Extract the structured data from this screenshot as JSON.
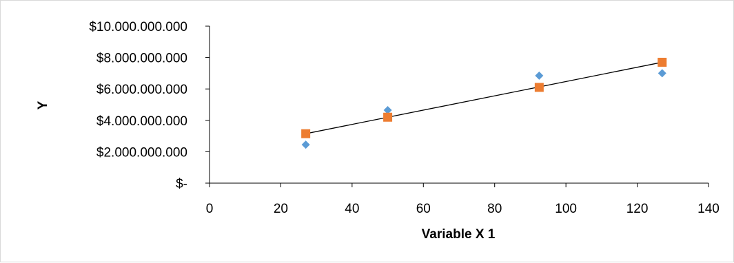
{
  "chart_data": {
    "type": "scatter",
    "title": "",
    "xlabel": "Variable X 1",
    "ylabel": "Y",
    "xlim": [
      0,
      140
    ],
    "ylim": [
      0,
      10000000000
    ],
    "x_ticks": [
      {
        "value": 0,
        "label": "0"
      },
      {
        "value": 20,
        "label": "20"
      },
      {
        "value": 40,
        "label": "40"
      },
      {
        "value": 60,
        "label": "60"
      },
      {
        "value": 80,
        "label": "80"
      },
      {
        "value": 100,
        "label": "100"
      },
      {
        "value": 120,
        "label": "120"
      },
      {
        "value": 140,
        "label": "140"
      }
    ],
    "y_ticks": [
      {
        "value": 0,
        "label": "$-"
      },
      {
        "value": 2000000000,
        "label": "$2.000.000.000"
      },
      {
        "value": 4000000000,
        "label": "$4.000.000.000"
      },
      {
        "value": 6000000000,
        "label": "$6.000.000.000"
      },
      {
        "value": 8000000000,
        "label": "$8.000.000.000"
      },
      {
        "value": 10000000000,
        "label": "$10.000.000.000"
      }
    ],
    "grid": false,
    "legend": "none",
    "series": [
      {
        "marker": "diamond",
        "color": "#5b9bd5",
        "points": [
          {
            "x": 27,
            "y": 2450000000
          },
          {
            "x": 50,
            "y": 4650000000
          },
          {
            "x": 92.5,
            "y": 6850000000
          },
          {
            "x": 127,
            "y": 7000000000
          }
        ]
      },
      {
        "marker": "square",
        "color": "#ed7d31",
        "points": [
          {
            "x": 27,
            "y": 3150000000
          },
          {
            "x": 50,
            "y": 4200000000
          },
          {
            "x": 92.5,
            "y": 6100000000
          },
          {
            "x": 127,
            "y": 7700000000
          }
        ]
      }
    ],
    "trendline": {
      "color": "#000000",
      "from": {
        "x": 27,
        "y": 3150000000
      },
      "to": {
        "x": 127,
        "y": 7700000000
      }
    }
  }
}
